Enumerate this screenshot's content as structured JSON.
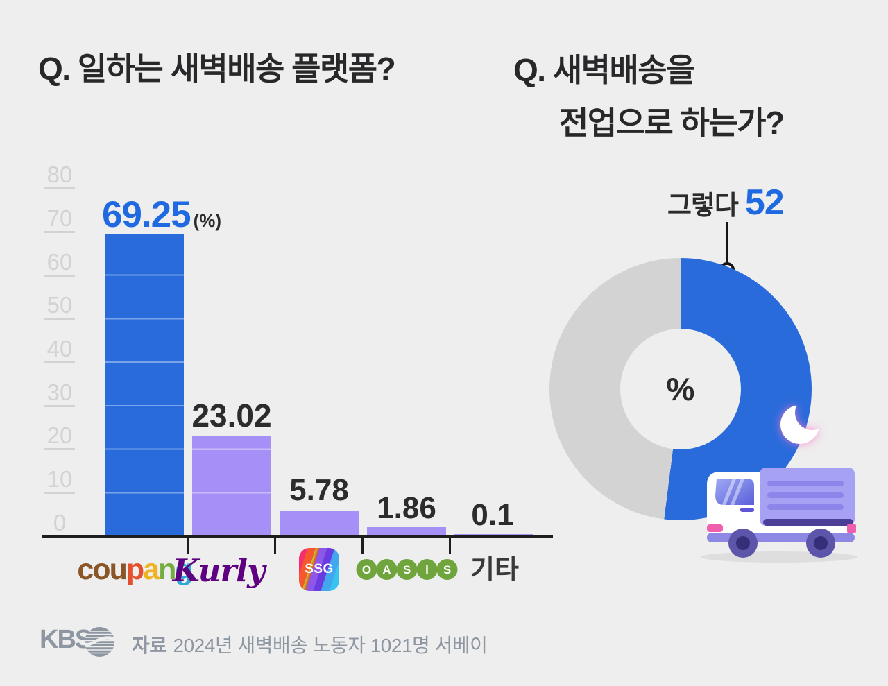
{
  "colors": {
    "background": "#eeeeee",
    "blue": "#2a6bdb",
    "blue_text": "#1f6ae0",
    "purple_bar": "#a78ff8",
    "donut_gray": "#d3d3d4",
    "axis_label_gray": "#d2d2d4",
    "dark_text": "#2b2b2d",
    "footer_gray": "#8d96a1",
    "kurly_purple": "#5f0080",
    "oasis_green": "#6fa53c",
    "coupang_letter_colors": [
      "#8a5527",
      "#8a5527",
      "#8a5527",
      "#e4502c",
      "#edb321",
      "#72ad3d",
      "#2fa8d8"
    ]
  },
  "left_chart": {
    "title": "Q. 일하는 새벽배송 플랫폼?",
    "unit_label": "(%)",
    "y_axis": {
      "ticks": [
        "80",
        "70",
        "60",
        "50",
        "40",
        "30",
        "20",
        "10",
        "0"
      ]
    },
    "chart_data": {
      "type": "bar",
      "categories": [
        "coupang",
        "Kurly",
        "SSG",
        "OASIS",
        "기타"
      ],
      "values": [
        69.25,
        23.02,
        5.78,
        1.86,
        0.1
      ],
      "unit": "%",
      "ylim": [
        0,
        80
      ],
      "gridline_step": 10,
      "bar_colors": [
        "#2a6bdb",
        "#a78ff8",
        "#a78ff8",
        "#a78ff8",
        "#a78ff8"
      ],
      "legend": "none"
    },
    "logos": {
      "coupang_letters": [
        "c",
        "o",
        "u",
        "p",
        "a",
        "n",
        "g"
      ],
      "kurly": "Kurly",
      "ssg": "SSG",
      "oasis_letters": [
        "O",
        "A",
        "S",
        "i",
        "S"
      ],
      "etc": "기타"
    }
  },
  "right_chart": {
    "title_line1": "Q. 새벽배송을",
    "title_line2": "전업으로 하는가?",
    "callout": {
      "label": "그렇다",
      "value": "52"
    },
    "center_label": "%",
    "chart_data": {
      "type": "pie",
      "donut": true,
      "start_angle_deg": 0,
      "clockwise": true,
      "slices": [
        {
          "label": "그렇다",
          "value": 52,
          "color": "#2a6bdb"
        },
        {
          "label": "",
          "value": 48,
          "color": "#d3d3d4"
        }
      ]
    }
  },
  "footer": {
    "logo_text": "KBS",
    "source_prefix": "자료",
    "source_text": "2024년 새벽배송 노동자 1021명 서베이"
  }
}
